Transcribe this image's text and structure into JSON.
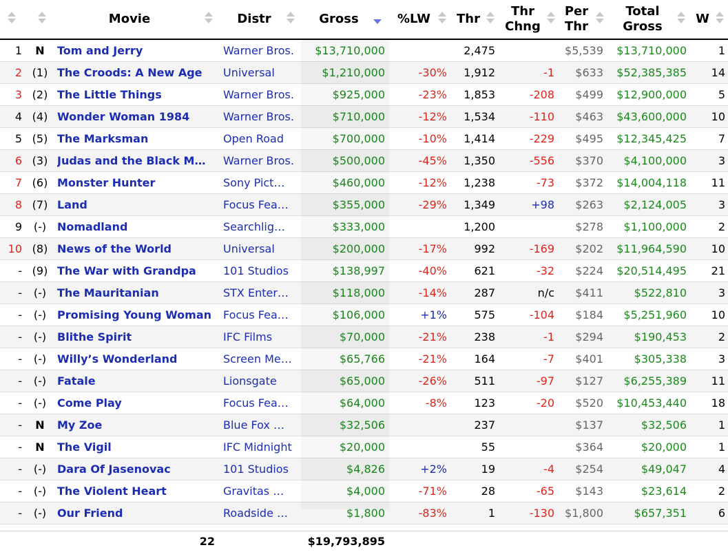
{
  "headers": {
    "movie": "Movie",
    "distr": "Distr",
    "gross": "Gross",
    "lw": "%LW",
    "thr": "Thr",
    "thr_chng": [
      "Thr",
      "Chng"
    ],
    "per_thr": [
      "Per",
      "Thr"
    ],
    "total_gross": [
      "Total",
      "Gross"
    ],
    "w": "W"
  },
  "colors": {
    "movie_link": "#1c2db0",
    "gross": "#1b8a1b",
    "negative": "#e0231b",
    "positive": "#1c2db0",
    "rank_changed": "#e0231b"
  },
  "rows": [
    {
      "rank": "1",
      "prev": "N",
      "movie": "Tom and Jerry",
      "distr": "Warner Bros.",
      "gross": "$13,710,000",
      "lw": "",
      "thr": "2,475",
      "chg": "",
      "per": "$5,539",
      "total": "$13,710,000",
      "w": "1",
      "rank_red": false
    },
    {
      "rank": "2",
      "prev": "(1)",
      "movie": "The Croods: A New Age",
      "distr": "Universal",
      "gross": "$1,210,000",
      "lw": "-30%",
      "thr": "1,912",
      "chg": "-1",
      "per": "$633",
      "total": "$52,385,385",
      "w": "14",
      "rank_red": true
    },
    {
      "rank": "3",
      "prev": "(2)",
      "movie": "The Little Things",
      "distr": "Warner Bros.",
      "gross": "$925,000",
      "lw": "-23%",
      "thr": "1,853",
      "chg": "-208",
      "per": "$499",
      "total": "$12,900,000",
      "w": "5",
      "rank_red": true
    },
    {
      "rank": "4",
      "prev": "(4)",
      "movie": "Wonder Woman 1984",
      "distr": "Warner Bros.",
      "gross": "$710,000",
      "lw": "-12%",
      "thr": "1,534",
      "chg": "-110",
      "per": "$463",
      "total": "$43,600,000",
      "w": "10",
      "rank_red": false
    },
    {
      "rank": "5",
      "prev": "(5)",
      "movie": "The Marksman",
      "distr": "Open Road",
      "gross": "$700,000",
      "lw": "-10%",
      "thr": "1,414",
      "chg": "-229",
      "per": "$495",
      "total": "$12,345,425",
      "w": "7",
      "rank_red": false
    },
    {
      "rank": "6",
      "prev": "(3)",
      "movie": "Judas and the Black M…",
      "distr": "Warner Bros.",
      "gross": "$500,000",
      "lw": "-45%",
      "thr": "1,350",
      "chg": "-556",
      "per": "$370",
      "total": "$4,100,000",
      "w": "3",
      "rank_red": true
    },
    {
      "rank": "7",
      "prev": "(6)",
      "movie": "Monster Hunter",
      "distr": "Sony Pict…",
      "gross": "$460,000",
      "lw": "-12%",
      "thr": "1,238",
      "chg": "-73",
      "per": "$372",
      "total": "$14,004,118",
      "w": "11",
      "rank_red": true
    },
    {
      "rank": "8",
      "prev": "(7)",
      "movie": "Land",
      "distr": "Focus Fea…",
      "gross": "$355,000",
      "lw": "-29%",
      "thr": "1,349",
      "chg": "+98",
      "per": "$263",
      "total": "$2,124,005",
      "w": "3",
      "rank_red": true
    },
    {
      "rank": "9",
      "prev": "(-)",
      "movie": "Nomadland",
      "distr": "Searchlig…",
      "gross": "$333,000",
      "lw": "",
      "thr": "1,200",
      "chg": "",
      "per": "$278",
      "total": "$1,100,000",
      "w": "2",
      "rank_red": false
    },
    {
      "rank": "10",
      "prev": "(8)",
      "movie": "News of the World",
      "distr": "Universal",
      "gross": "$200,000",
      "lw": "-17%",
      "thr": "992",
      "chg": "-169",
      "per": "$202",
      "total": "$11,964,590",
      "w": "10",
      "rank_red": true
    },
    {
      "rank": "-",
      "prev": "(9)",
      "movie": "The War with Grandpa",
      "distr": "101 Studios",
      "gross": "$138,997",
      "lw": "-40%",
      "thr": "621",
      "chg": "-32",
      "per": "$224",
      "total": "$20,514,495",
      "w": "21",
      "rank_red": false
    },
    {
      "rank": "-",
      "prev": "(-)",
      "movie": "The Mauritanian",
      "distr": "STX Enter…",
      "gross": "$118,000",
      "lw": "-14%",
      "thr": "287",
      "chg": "n/c",
      "per": "$411",
      "total": "$522,810",
      "w": "3",
      "rank_red": false
    },
    {
      "rank": "-",
      "prev": "(-)",
      "movie": "Promising Young Woman",
      "distr": "Focus Fea…",
      "gross": "$106,000",
      "lw": "+1%",
      "thr": "575",
      "chg": "-104",
      "per": "$184",
      "total": "$5,251,960",
      "w": "10",
      "rank_red": false
    },
    {
      "rank": "-",
      "prev": "(-)",
      "movie": "Blithe Spirit",
      "distr": "IFC Films",
      "gross": "$70,000",
      "lw": "-21%",
      "thr": "238",
      "chg": "-1",
      "per": "$294",
      "total": "$190,453",
      "w": "2",
      "rank_red": false
    },
    {
      "rank": "-",
      "prev": "(-)",
      "movie": "Willy’s Wonderland",
      "distr": "Screen Me…",
      "gross": "$65,766",
      "lw": "-21%",
      "thr": "164",
      "chg": "-7",
      "per": "$401",
      "total": "$305,338",
      "w": "3",
      "rank_red": false
    },
    {
      "rank": "-",
      "prev": "(-)",
      "movie": "Fatale",
      "distr": "Lionsgate",
      "gross": "$65,000",
      "lw": "-26%",
      "thr": "511",
      "chg": "-97",
      "per": "$127",
      "total": "$6,255,389",
      "w": "11",
      "rank_red": false
    },
    {
      "rank": "-",
      "prev": "(-)",
      "movie": "Come Play",
      "distr": "Focus Fea…",
      "gross": "$64,000",
      "lw": "-8%",
      "thr": "123",
      "chg": "-20",
      "per": "$520",
      "total": "$10,453,440",
      "w": "18",
      "rank_red": false
    },
    {
      "rank": "-",
      "prev": "N",
      "movie": "My Zoe",
      "distr": "Blue Fox …",
      "gross": "$32,506",
      "lw": "",
      "thr": "237",
      "chg": "",
      "per": "$137",
      "total": "$32,506",
      "w": "1",
      "rank_red": false
    },
    {
      "rank": "-",
      "prev": "N",
      "movie": "The Vigil",
      "distr": "IFC Midnight",
      "gross": "$20,000",
      "lw": "",
      "thr": "55",
      "chg": "",
      "per": "$364",
      "total": "$20,000",
      "w": "1",
      "rank_red": false
    },
    {
      "rank": "-",
      "prev": "(-)",
      "movie": "Dara Of Jasenovac",
      "distr": "101 Studios",
      "gross": "$4,826",
      "lw": "+2%",
      "thr": "19",
      "chg": "-4",
      "per": "$254",
      "total": "$49,047",
      "w": "4",
      "rank_red": false
    },
    {
      "rank": "-",
      "prev": "(-)",
      "movie": "The Violent Heart",
      "distr": "Gravitas …",
      "gross": "$4,000",
      "lw": "-71%",
      "thr": "28",
      "chg": "-65",
      "per": "$143",
      "total": "$23,614",
      "w": "2",
      "rank_red": false
    },
    {
      "rank": "-",
      "prev": "(-)",
      "movie": "Our Friend",
      "distr": "Roadside …",
      "gross": "$1,800",
      "lw": "-83%",
      "thr": "1",
      "chg": "-130",
      "per": "$1,800",
      "total": "$657,351",
      "w": "6",
      "rank_red": false
    }
  ],
  "footer": {
    "count": "22",
    "gross_total": "$19,793,895"
  }
}
